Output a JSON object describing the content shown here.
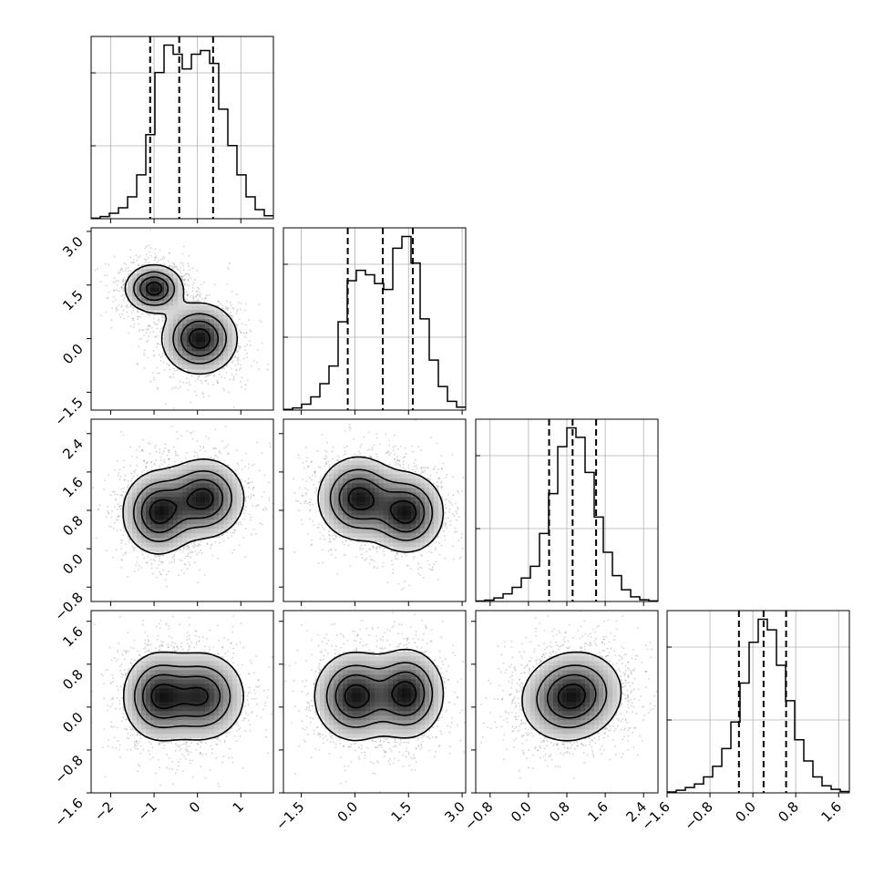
{
  "chart_data": {
    "type": "corner",
    "parameters": 4,
    "grid": true,
    "quantiles": [
      0.16,
      0.5,
      0.84
    ],
    "colors": {
      "line": "#000000",
      "grid": "#b0b0b0",
      "points": "#7f7f7f",
      "fill_dark": "#111111"
    },
    "params": [
      {
        "range": [
          -2.45,
          1.75
        ],
        "ticks": [
          -2,
          -1,
          0,
          1
        ],
        "tick_labels": [
          "−2",
          "−1",
          "0",
          "1"
        ]
      },
      {
        "range": [
          -2.0,
          3.1
        ],
        "ticks": [
          -1.5,
          0.0,
          1.5,
          3.0
        ],
        "tick_labels": [
          "−1.5",
          "0.0",
          "1.5",
          "3.0"
        ]
      },
      {
        "range": [
          -1.1,
          2.7
        ],
        "ticks": [
          -0.8,
          0.0,
          0.8,
          1.6,
          2.4
        ],
        "tick_labels": [
          "−0.8",
          "0.0",
          "0.8",
          "1.6",
          "2.4"
        ]
      },
      {
        "range": [
          -1.6,
          1.8
        ],
        "ticks": [
          -1.6,
          -0.8,
          0.0,
          0.8,
          1.6
        ],
        "tick_labels": [
          "−1.6",
          "−0.8",
          "0.0",
          "0.8",
          "1.6"
        ]
      }
    ],
    "marginals": [
      {
        "param": 0,
        "bin_edges": [
          -2.45,
          -2.24,
          -2.03,
          -1.82,
          -1.61,
          -1.4,
          -1.19,
          -0.98,
          -0.77,
          -0.56,
          -0.35,
          -0.14,
          0.07,
          0.28,
          0.49,
          0.7,
          0.91,
          1.12,
          1.33,
          1.54,
          1.75
        ],
        "counts": [
          0.3,
          1.2,
          3.0,
          6.0,
          12.0,
          24.0,
          46.0,
          80.0,
          95.0,
          90.0,
          82.0,
          90.0,
          92.0,
          85.0,
          60.0,
          40.0,
          24.0,
          12.0,
          5.0,
          1.6
        ],
        "quantile_values": [
          -1.09,
          -0.42,
          0.36
        ]
      },
      {
        "param": 1,
        "bin_edges": [
          -2.0,
          -1.745,
          -1.49,
          -1.235,
          -0.98,
          -0.725,
          -0.47,
          -0.215,
          0.04,
          0.295,
          0.55,
          0.805,
          1.06,
          1.315,
          1.57,
          1.825,
          2.08,
          2.335,
          2.59,
          2.845,
          3.1
        ],
        "counts": [
          0.5,
          1.5,
          4.0,
          9.0,
          18.0,
          30.0,
          60.0,
          88.0,
          95.0,
          92.0,
          86.0,
          82.0,
          110.0,
          118.0,
          100.0,
          62.0,
          34.0,
          16.0,
          6.0,
          2.0
        ],
        "quantile_values": [
          -0.2,
          0.78,
          1.62
        ]
      },
      {
        "param": 2,
        "bin_edges": [
          -1.1,
          -0.91,
          -0.72,
          -0.53,
          -0.34,
          -0.15,
          0.04,
          0.23,
          0.42,
          0.61,
          0.8,
          0.99,
          1.18,
          1.37,
          1.56,
          1.75,
          1.94,
          2.13,
          2.32,
          2.51,
          2.7
        ],
        "counts": [
          0.4,
          1.2,
          3.0,
          6.5,
          12.0,
          20.0,
          30.0,
          58.0,
          92.0,
          132.0,
          148.0,
          140.0,
          110.0,
          72.0,
          42.0,
          22.0,
          10.0,
          4.0,
          1.5,
          0.5
        ],
        "quantile_values": [
          0.43,
          0.92,
          1.41
        ]
      },
      {
        "param": 3,
        "bin_edges": [
          -1.6,
          -1.43,
          -1.26,
          -1.09,
          -0.92,
          -0.75,
          -0.58,
          -0.41,
          -0.24,
          -0.07,
          0.1,
          0.27,
          0.44,
          0.61,
          0.78,
          0.95,
          1.12,
          1.29,
          1.46,
          1.63,
          1.8
        ],
        "counts": [
          0.5,
          1.5,
          3.0,
          5.0,
          9.0,
          15.0,
          25.0,
          40.0,
          62.0,
          85.0,
          98.0,
          92.0,
          72.0,
          52.0,
          30.0,
          18.0,
          9.0,
          4.0,
          2.0,
          0.8
        ],
        "quantile_values": [
          -0.26,
          0.2,
          0.62
        ]
      }
    ],
    "joints": [
      {
        "x": 0,
        "y": 1,
        "modes": [
          {
            "mx": -1.0,
            "my": 1.4,
            "sx": 0.32,
            "sy": 0.32,
            "rho": 0.0,
            "w": 0.5
          },
          {
            "mx": 0.05,
            "my": 0.0,
            "sx": 0.42,
            "sy": 0.48,
            "rho": 0.0,
            "w": 0.5
          }
        ]
      },
      {
        "x": 0,
        "y": 2,
        "modes": [
          {
            "mx": -0.9,
            "my": 0.75,
            "sx": 0.4,
            "sy": 0.42,
            "rho": 0.0,
            "w": 0.5
          },
          {
            "mx": 0.15,
            "my": 1.05,
            "sx": 0.45,
            "sy": 0.4,
            "rho": 0.0,
            "w": 0.5
          }
        ]
      },
      {
        "x": 1,
        "y": 2,
        "modes": [
          {
            "mx": 0.1,
            "my": 1.05,
            "sx": 0.55,
            "sy": 0.42,
            "rho": 0.0,
            "w": 0.5
          },
          {
            "mx": 1.45,
            "my": 0.75,
            "sx": 0.5,
            "sy": 0.4,
            "rho": 0.0,
            "w": 0.5
          }
        ]
      },
      {
        "x": 0,
        "y": 3,
        "modes": [
          {
            "mx": -0.9,
            "my": 0.2,
            "sx": 0.4,
            "sy": 0.4,
            "rho": 0.0,
            "w": 0.5
          },
          {
            "mx": 0.1,
            "my": 0.2,
            "sx": 0.48,
            "sy": 0.4,
            "rho": 0.0,
            "w": 0.5
          }
        ]
      },
      {
        "x": 1,
        "y": 3,
        "modes": [
          {
            "mx": 0.0,
            "my": 0.2,
            "sx": 0.55,
            "sy": 0.4,
            "rho": 0.0,
            "w": 0.5
          },
          {
            "mx": 1.45,
            "my": 0.25,
            "sx": 0.5,
            "sy": 0.4,
            "rho": 0.0,
            "w": 0.5
          }
        ]
      },
      {
        "x": 2,
        "y": 3,
        "modes": [
          {
            "mx": 0.9,
            "my": 0.2,
            "sx": 0.5,
            "sy": 0.4,
            "rho": 0.1,
            "w": 1.0
          }
        ]
      }
    ],
    "contour_levels": [
      0.12,
      0.35,
      0.6,
      0.85
    ],
    "scatter_points_per_panel": 1800
  }
}
